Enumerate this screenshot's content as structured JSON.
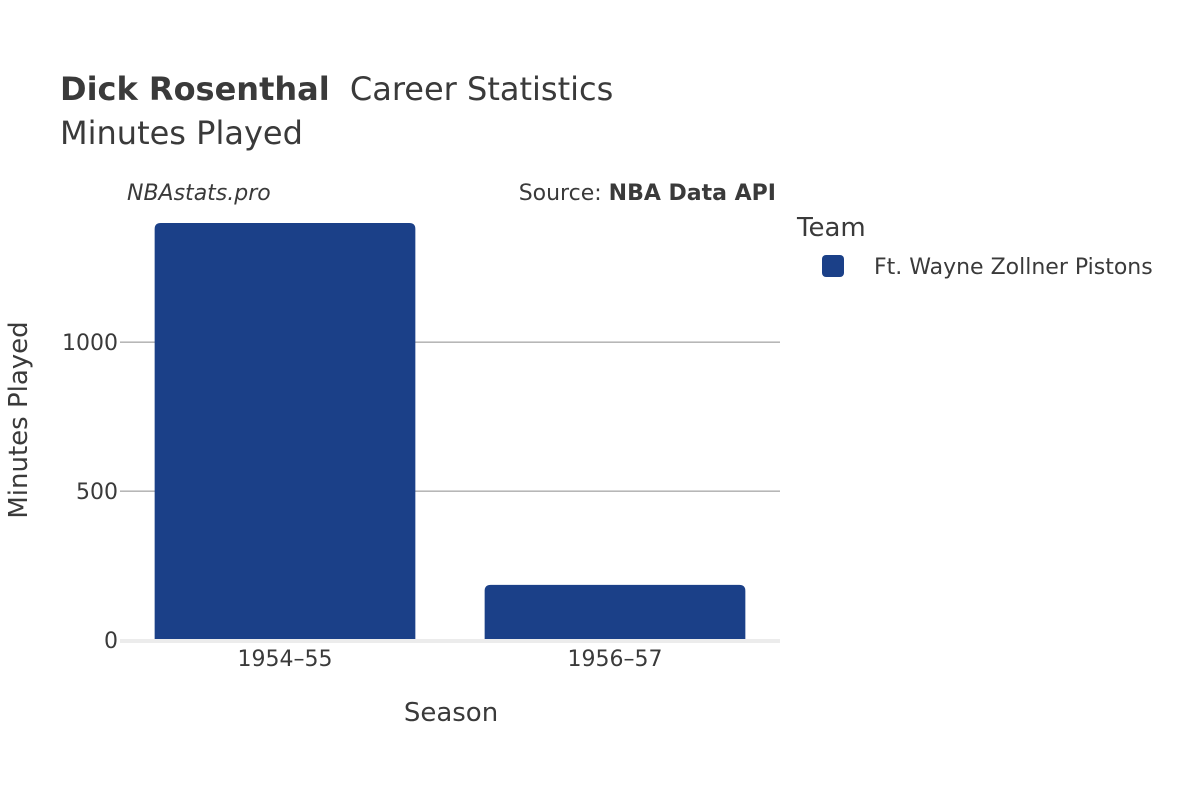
{
  "header": {
    "title_bold": "Dick Rosenthal",
    "title_rest": "Career Statistics",
    "subtitle": "Minutes Played",
    "watermark": "NBAstats.pro",
    "source_prefix": "Source: ",
    "source_name": "NBA Data API"
  },
  "legend": {
    "title": "Team",
    "items": [
      {
        "label": "Ft. Wayne Zollner Pistons",
        "color": "#1b4088"
      }
    ]
  },
  "chart_data": {
    "type": "bar",
    "categories": [
      "1954–55",
      "1956–57"
    ],
    "series": [
      {
        "name": "Ft. Wayne Zollner Pistons",
        "values": [
          1400,
          185
        ],
        "color": "#1b4088"
      }
    ],
    "xlabel": "Season",
    "ylabel": "Minutes Played",
    "ylim": [
      0,
      1400
    ],
    "yticks": [
      0,
      500,
      1000
    ],
    "ytick_labels": [
      "0",
      "500",
      "1000"
    ],
    "grid": true,
    "legend_position": "right"
  }
}
